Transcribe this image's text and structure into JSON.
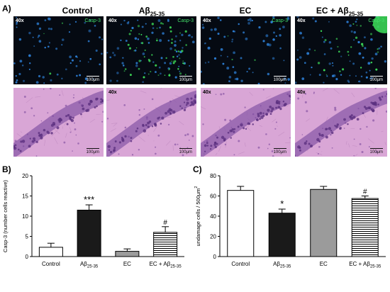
{
  "panel_a": {
    "letter": "A)",
    "groups": [
      {
        "title": "Control",
        "title_sub": ""
      },
      {
        "title": "Aβ",
        "title_sub": "25-35"
      },
      {
        "title": "EC",
        "title_sub": ""
      },
      {
        "title": "EC + Aβ",
        "title_sub": "25-35"
      }
    ],
    "fluor_row": {
      "magnification": "40x",
      "marker": "Casp-3",
      "scale": "100μm"
    },
    "he_row": {
      "magnification": "40x",
      "scale": "100μm"
    }
  },
  "panel_b": {
    "letter": "B)"
  },
  "panel_c": {
    "letter": "C)"
  },
  "colors": {
    "fluor_bg": "#050a12",
    "nucleus": "#2d7fd6",
    "casp_green": "#3ee05a",
    "he_bg": "#d9a6d6",
    "he_band": "#8a5aa8"
  },
  "chart_data": [
    {
      "type": "bar",
      "ylabel": "Casp-3 (number cells reactive)",
      "ylim": [
        0,
        20
      ],
      "yticks": [
        "0",
        "5",
        "10",
        "15",
        "20"
      ],
      "categories": [
        {
          "main": "Control",
          "sub": ""
        },
        {
          "main": "Aβ",
          "sub": "25-35"
        },
        {
          "main": "EC",
          "sub": ""
        },
        {
          "main": "EC + Aβ",
          "sub": "25-35"
        }
      ],
      "values": [
        2.3,
        11.5,
        1.3,
        6.0
      ],
      "errors": [
        1.0,
        1.3,
        0.6,
        1.4
      ],
      "fills": [
        "white",
        "black",
        "gray",
        "hatch"
      ],
      "annotations": [
        "",
        "***",
        "",
        "#"
      ]
    },
    {
      "type": "bar",
      "ylabel": "undamage cells  / 500μm",
      "ylabel_sup": "2",
      "ylim": [
        0,
        80
      ],
      "yticks": [
        "0",
        "20",
        "40",
        "60",
        "80"
      ],
      "categories": [
        {
          "main": "Control",
          "sub": ""
        },
        {
          "main": "Aβ",
          "sub": "25-35"
        },
        {
          "main": "EC",
          "sub": ""
        },
        {
          "main": "EC + Aβ",
          "sub": "25-35"
        }
      ],
      "values": [
        65.5,
        43.0,
        66.5,
        57.5
      ],
      "errors": [
        4.0,
        4.0,
        3.0,
        2.5
      ],
      "fills": [
        "white",
        "black",
        "gray",
        "hatch"
      ],
      "annotations": [
        "",
        "*",
        "",
        "#"
      ]
    }
  ]
}
